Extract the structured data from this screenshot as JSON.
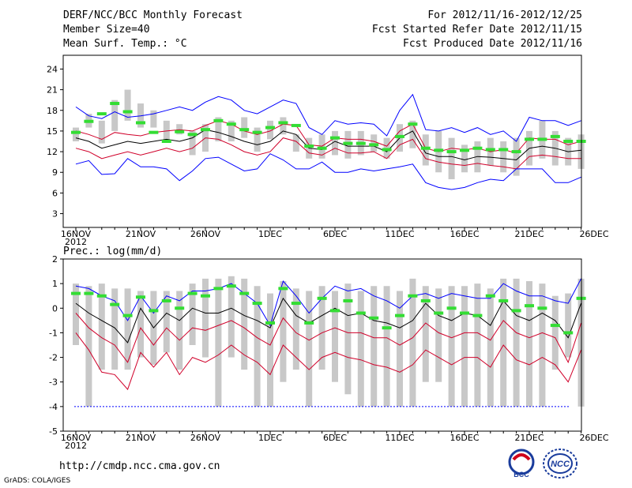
{
  "header": {
    "title": "DERF/NCC/BCC Monthly Forecast",
    "member_size": "Member Size=40",
    "variable": "Mean Surf. Temp.: °C",
    "period": "For 2012/11/16-2012/12/25",
    "started": "Fcst Started Refer Date 2012/11/15",
    "produced": "Fcst Produced Date 2012/11/16"
  },
  "footer": {
    "url": "http://cmdp.ncc.cma.gov.cn",
    "grads": "GrADS: COLA/IGES",
    "logo_bcc": "BCC",
    "logo_ncc": "NCC"
  },
  "colors": {
    "blue": "#0000ff",
    "red": "#d0002a",
    "green": "#33dd33",
    "grey": "#c8c8c8",
    "mean": "#000000"
  },
  "chart_data": [
    {
      "type": "line",
      "title": "Mean Surf. Temp.: °C",
      "x": [
        "16NOV",
        "17NOV",
        "18NOV",
        "19NOV",
        "20NOV",
        "21NOV",
        "22NOV",
        "23NOV",
        "24NOV",
        "25NOV",
        "26NOV",
        "27NOV",
        "28NOV",
        "29NOV",
        "30NOV",
        "1DEC",
        "2DEC",
        "3DEC",
        "4DEC",
        "5DEC",
        "6DEC",
        "7DEC",
        "8DEC",
        "9DEC",
        "10DEC",
        "11DEC",
        "12DEC",
        "13DEC",
        "14DEC",
        "15DEC",
        "16DEC",
        "17DEC",
        "18DEC",
        "19DEC",
        "20DEC",
        "21DEC",
        "22DEC",
        "23DEC",
        "24DEC",
        "25DEC"
      ],
      "xticks": [
        "16NOV",
        "21NOV",
        "26NOV",
        "1DEC",
        "6DEC",
        "11DEC",
        "16DEC",
        "21DEC",
        "26DEC"
      ],
      "xsub": "2012",
      "ylim": [
        1,
        26
      ],
      "yticks": [
        3,
        6,
        9,
        12,
        15,
        18,
        21,
        24
      ],
      "series": [
        {
          "name": "max",
          "color": "#0000ff",
          "values": [
            18.5,
            17.2,
            16.8,
            17.8,
            17.0,
            17.2,
            17.5,
            18.0,
            18.5,
            18.0,
            19.2,
            20.0,
            19.5,
            18.0,
            17.5,
            18.5,
            19.5,
            19.0,
            15.5,
            14.5,
            16.5,
            16.0,
            16.2,
            16.0,
            14.3,
            18.0,
            20.3,
            15.2,
            15.0,
            15.5,
            14.8,
            15.5,
            14.5,
            15.0,
            13.5,
            17.0,
            16.5,
            16.5,
            15.8,
            16.5
          ]
        },
        {
          "name": "upper",
          "color": "#d0002a",
          "values": [
            15.0,
            14.5,
            13.8,
            14.8,
            14.5,
            14.3,
            14.8,
            15.0,
            15.2,
            15.0,
            15.8,
            16.5,
            16.0,
            15.0,
            14.5,
            15.0,
            16.0,
            15.8,
            13.0,
            12.8,
            14.0,
            13.8,
            13.8,
            13.5,
            12.8,
            15.0,
            16.0,
            12.5,
            12.0,
            12.5,
            12.3,
            12.5,
            12.0,
            12.3,
            11.8,
            14.0,
            13.8,
            13.8,
            13.0,
            13.5
          ]
        },
        {
          "name": "mean",
          "color": "#000000",
          "values": [
            14.0,
            13.5,
            12.5,
            13.0,
            13.5,
            13.2,
            13.5,
            13.8,
            13.5,
            14.0,
            15.2,
            14.8,
            14.2,
            13.5,
            13.0,
            13.5,
            15.0,
            14.5,
            12.5,
            12.3,
            13.5,
            12.8,
            12.8,
            12.8,
            12.0,
            14.0,
            15.0,
            11.8,
            11.3,
            11.3,
            10.8,
            11.3,
            11.2,
            11.0,
            10.8,
            12.5,
            12.8,
            12.5,
            12.0,
            12.2
          ]
        },
        {
          "name": "lower",
          "color": "#d0002a",
          "values": [
            12.5,
            12.0,
            11.0,
            11.5,
            12.0,
            11.5,
            12.0,
            12.5,
            12.0,
            12.5,
            14.0,
            13.8,
            13.0,
            12.0,
            11.5,
            12.0,
            14.0,
            13.5,
            11.8,
            11.5,
            12.5,
            11.8,
            11.8,
            12.0,
            11.0,
            13.0,
            13.8,
            11.0,
            10.5,
            10.2,
            10.0,
            10.3,
            10.0,
            9.8,
            9.5,
            11.3,
            11.5,
            11.3,
            11.0,
            11.0
          ]
        },
        {
          "name": "min",
          "color": "#0000ff",
          "values": [
            10.2,
            10.7,
            8.7,
            8.8,
            11.0,
            9.8,
            9.8,
            9.5,
            7.8,
            9.2,
            11.0,
            11.2,
            10.2,
            9.2,
            9.5,
            11.7,
            10.8,
            9.5,
            9.5,
            10.5,
            9.0,
            9.0,
            9.5,
            9.2,
            9.5,
            9.8,
            10.2,
            7.5,
            6.8,
            6.5,
            6.8,
            7.5,
            8.0,
            7.8,
            9.5,
            9.5,
            9.5,
            7.5,
            7.5,
            8.3
          ]
        }
      ],
      "bars": {
        "color": "#c8c8c8",
        "low": [
          13.5,
          15.5,
          13.2,
          15.0,
          16.5,
          15.5,
          15.5,
          13.5,
          14.5,
          11.5,
          12.0,
          13.5,
          13.5,
          14.0,
          12.0,
          13.8,
          14.5,
          12.0,
          11.0,
          11.0,
          11.5,
          11.0,
          11.5,
          12.0,
          11.0,
          12.0,
          12.5,
          10.0,
          9.0,
          8.0,
          9.0,
          9.0,
          10.0,
          9.0,
          8.5,
          10.0,
          11.0,
          10.0,
          10.0,
          9.5
        ],
        "high": [
          15.5,
          17.5,
          16.5,
          19.5,
          21.0,
          19.0,
          18.0,
          16.5,
          16.0,
          15.0,
          16.0,
          17.0,
          16.5,
          17.0,
          15.5,
          16.5,
          17.0,
          14.5,
          14.0,
          14.5,
          15.0,
          15.0,
          15.0,
          14.5,
          14.0,
          16.0,
          16.5,
          14.5,
          15.0,
          14.0,
          13.0,
          13.5,
          14.0,
          13.5,
          14.0,
          15.0,
          16.5,
          15.0,
          14.0,
          14.5
        ]
      },
      "green_marks": [
        14.8,
        16.4,
        17.5,
        19.0,
        17.8,
        16.2,
        14.8,
        13.5,
        14.9,
        14.5,
        15.2,
        16.5,
        16.0,
        15.2,
        14.8,
        15.5,
        16.2,
        15.8,
        12.8,
        12.5,
        14.0,
        13.2,
        13.2,
        13.0,
        12.3,
        14.2,
        16.0,
        12.5,
        12.2,
        12.0,
        12.2,
        12.5,
        12.3,
        12.3,
        12.0,
        13.8,
        13.8,
        14.2,
        13.5,
        13.5
      ]
    },
    {
      "type": "line",
      "title": "Prec.: log(mm/d)",
      "x": [
        "16NOV",
        "17NOV",
        "18NOV",
        "19NOV",
        "20NOV",
        "21NOV",
        "22NOV",
        "23NOV",
        "24NOV",
        "25NOV",
        "26NOV",
        "27NOV",
        "28NOV",
        "29NOV",
        "30NOV",
        "1DEC",
        "2DEC",
        "3DEC",
        "4DEC",
        "5DEC",
        "6DEC",
        "7DEC",
        "8DEC",
        "9DEC",
        "10DEC",
        "11DEC",
        "12DEC",
        "13DEC",
        "14DEC",
        "15DEC",
        "16DEC",
        "17DEC",
        "18DEC",
        "19DEC",
        "20DEC",
        "21DEC",
        "22DEC",
        "23DEC",
        "24DEC",
        "25DEC"
      ],
      "xticks": [
        "16NOV",
        "21NOV",
        "26NOV",
        "1DEC",
        "6DEC",
        "11DEC",
        "16DEC",
        "21DEC",
        "26DEC"
      ],
      "xsub": "2012",
      "ylim": [
        -5,
        2
      ],
      "yticks": [
        -5,
        -4,
        -3,
        -2,
        -1,
        0,
        1,
        2
      ],
      "series": [
        {
          "name": "max",
          "color": "#0000ff",
          "values": [
            0.9,
            0.8,
            0.5,
            0.3,
            -0.5,
            0.5,
            -0.2,
            0.5,
            0.3,
            0.7,
            0.7,
            0.8,
            1.0,
            0.6,
            0.2,
            -0.7,
            1.1,
            0.5,
            -0.2,
            0.4,
            0.9,
            0.7,
            0.8,
            0.5,
            0.3,
            0.0,
            0.5,
            0.6,
            0.4,
            0.6,
            0.5,
            0.4,
            0.4,
            1.0,
            0.7,
            0.5,
            0.5,
            0.3,
            0.2,
            1.2
          ]
        },
        {
          "name": "mean",
          "color": "#000000",
          "values": [
            0.2,
            -0.2,
            -0.5,
            -0.8,
            -1.4,
            0.0,
            -0.8,
            -0.2,
            -0.5,
            0.0,
            -0.2,
            -0.2,
            0.0,
            -0.3,
            -0.5,
            -0.8,
            0.4,
            -0.3,
            -0.6,
            -0.3,
            0.0,
            -0.3,
            -0.2,
            -0.5,
            -0.6,
            -0.8,
            -0.5,
            0.2,
            -0.3,
            -0.5,
            -0.2,
            -0.3,
            -0.7,
            0.3,
            -0.3,
            -0.5,
            -0.2,
            -0.5,
            -1.2,
            0.2
          ]
        },
        {
          "name": "upper",
          "color": "#d0002a",
          "values": [
            -0.2,
            -0.8,
            -1.2,
            -1.5,
            -2.2,
            -0.8,
            -1.5,
            -0.8,
            -1.3,
            -0.8,
            -0.9,
            -0.7,
            -0.5,
            -0.8,
            -1.2,
            -1.5,
            -0.4,
            -1.0,
            -1.3,
            -1.0,
            -0.8,
            -1.0,
            -1.0,
            -1.2,
            -1.2,
            -1.5,
            -1.2,
            -0.6,
            -1.0,
            -1.2,
            -1.0,
            -1.0,
            -1.3,
            -0.5,
            -1.0,
            -1.2,
            -1.0,
            -1.2,
            -2.2,
            -0.6
          ]
        },
        {
          "name": "lower",
          "color": "#d0002a",
          "values": [
            -1.0,
            -1.7,
            -2.6,
            -2.7,
            -3.3,
            -1.8,
            -2.4,
            -1.8,
            -2.7,
            -2.0,
            -2.2,
            -1.9,
            -1.5,
            -1.9,
            -2.2,
            -2.7,
            -1.5,
            -2.0,
            -2.5,
            -2.0,
            -1.8,
            -2.0,
            -2.1,
            -2.3,
            -2.4,
            -2.6,
            -2.3,
            -1.7,
            -2.0,
            -2.3,
            -2.0,
            -2.0,
            -2.4,
            -1.5,
            -2.1,
            -2.3,
            -2.0,
            -2.3,
            -3.0,
            -1.7
          ]
        }
      ],
      "bars": {
        "color": "#c8c8c8",
        "low": [
          -1.5,
          -4.0,
          -2.5,
          -2.5,
          -2.5,
          -2.0,
          -2.3,
          -1.8,
          -2.5,
          -1.5,
          -2.0,
          -4.0,
          -2.0,
          -2.5,
          -4.0,
          -4.0,
          -3.0,
          -2.5,
          -4.0,
          -2.5,
          -3.0,
          -3.5,
          -4.0,
          -4.0,
          -4.0,
          -4.0,
          -4.0,
          -3.0,
          -3.0,
          -4.0,
          -4.0,
          -4.0,
          -4.0,
          -4.0,
          -4.0,
          -4.0,
          -4.0,
          -2.5,
          -2.0,
          -4.0
        ],
        "high": [
          1.0,
          0.9,
          1.0,
          0.8,
          0.8,
          0.7,
          0.7,
          0.7,
          0.7,
          1.0,
          1.2,
          1.2,
          1.3,
          1.2,
          0.9,
          0.6,
          1.1,
          0.8,
          0.7,
          0.9,
          0.7,
          1.0,
          0.7,
          0.9,
          0.9,
          0.7,
          1.2,
          0.9,
          0.8,
          0.9,
          0.9,
          1.0,
          0.8,
          1.2,
          1.2,
          1.1,
          1.0,
          0.5,
          0.6,
          1.2
        ]
      },
      "green_marks": [
        0.6,
        0.6,
        0.5,
        0.15,
        -0.3,
        0.45,
        -0.1,
        0.3,
        0.0,
        0.6,
        0.5,
        0.8,
        0.9,
        0.6,
        0.2,
        -0.6,
        0.8,
        0.2,
        -0.6,
        0.4,
        -0.1,
        0.3,
        -0.2,
        -0.4,
        -0.8,
        -0.3,
        0.5,
        0.3,
        -0.2,
        -0.0,
        -0.2,
        -0.3,
        0.5,
        0.3,
        -0.1,
        0.1,
        0.0,
        -0.7,
        -1.0,
        0.4
      ],
      "baseline": -4
    }
  ]
}
